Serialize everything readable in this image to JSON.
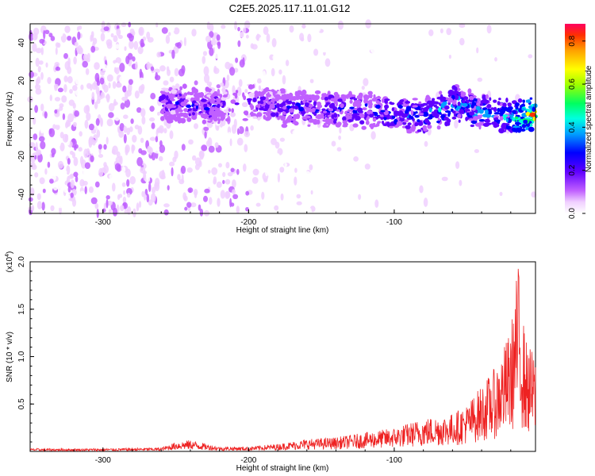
{
  "title": "C2E5.2025.117.11.01.G12",
  "chart_data": [
    {
      "type": "heatmap",
      "xlabel": "Height of straight line (km)",
      "ylabel": "Frequency (Hz)",
      "xlim": [
        -350,
        -3
      ],
      "ylim": [
        -50,
        50
      ],
      "xticks": [
        -300,
        -200,
        -100
      ],
      "yticks": [
        -40,
        -20,
        0,
        20,
        40
      ],
      "grid": false,
      "colorbar": {
        "label": "Normalized spectral amplitude",
        "range": [
          0.0,
          0.88
        ],
        "ticks": [
          0.0,
          0.2,
          0.4,
          0.6,
          0.8
        ],
        "colormap": [
          "#ffffff",
          "#ff00ff",
          "#7a00ff",
          "#0000ff",
          "#00b0ff",
          "#00ffd0",
          "#00ff40",
          "#b0ff00",
          "#ffff00",
          "#ffb000",
          "#ff4000",
          "#ff0000"
        ]
      },
      "ridge": {
        "x": [
          -260,
          -240,
          -220,
          -200,
          -180,
          -160,
          -140,
          -120,
          -100,
          -80,
          -60,
          -40,
          -20,
          -3
        ],
        "y": [
          8,
          7,
          6,
          9,
          6,
          5,
          5,
          5,
          3,
          1,
          8,
          4,
          0,
          2
        ],
        "peak_amplitude": [
          0.3,
          0.35,
          0.3,
          0.3,
          0.32,
          0.35,
          0.35,
          0.38,
          0.4,
          0.42,
          0.5,
          0.45,
          0.55,
          0.88
        ]
      }
    },
    {
      "type": "line",
      "xlabel": "Height of straight line (km)",
      "ylabel": "SNR (10 * v/v)",
      "yscale_label": "(x10^4)",
      "xlim": [
        -350,
        -3
      ],
      "ylim": [
        0,
        20000
      ],
      "xticks": [
        -300,
        -200,
        -100
      ],
      "yticks": [
        0.5,
        1.0,
        1.5,
        2.0
      ],
      "grid": false,
      "series": [
        {
          "color": "#ee2222",
          "envelope_x": [
            -350,
            -300,
            -260,
            -250,
            -240,
            -220,
            -200,
            -180,
            -160,
            -140,
            -120,
            -100,
            -80,
            -60,
            -50,
            -40,
            -30,
            -20,
            -15,
            -10,
            -3
          ],
          "envelope_y": [
            300,
            300,
            400,
            1000,
            1200,
            500,
            500,
            800,
            1300,
            1500,
            2000,
            2500,
            3500,
            4000,
            5000,
            7000,
            9000,
            13000,
            20000,
            12000,
            10000
          ]
        }
      ]
    }
  ]
}
